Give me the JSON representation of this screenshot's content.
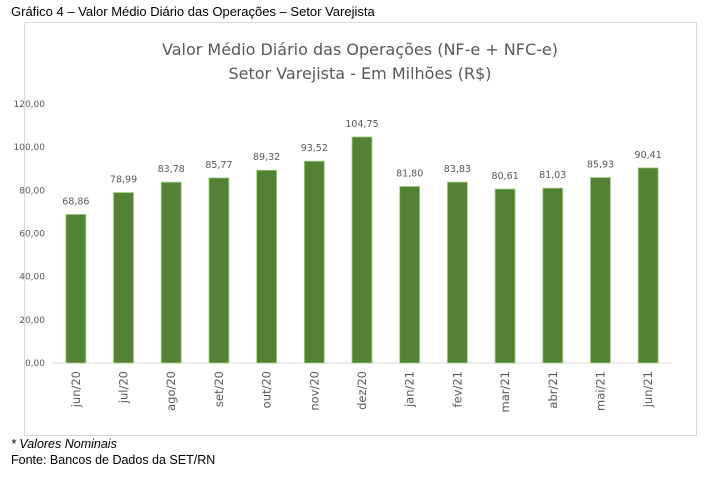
{
  "caption": "Gráfico 4 – Valor Médio Diário das Operações – Setor Varejista",
  "note": "* Valores Nominais",
  "source": "Fonte: Bancos de Dados da SET/RN",
  "chart_data": {
    "type": "bar",
    "title": "Valor Médio Diário das Operações (NF-e + NFC-e)",
    "subtitle": "Setor Varejista - Em Milhões (R$)",
    "categories": [
      "jun/20",
      "jul/20",
      "ago/20",
      "set/20",
      "out/20",
      "nov/20",
      "dez/20",
      "jan/21",
      "fev/21",
      "mar/21",
      "abr/21",
      "mai/21",
      "jun/21"
    ],
    "values": [
      68.86,
      78.99,
      83.78,
      85.77,
      89.32,
      93.52,
      104.75,
      81.8,
      83.83,
      80.61,
      81.03,
      85.93,
      90.41
    ],
    "data_labels": [
      "68,86",
      "78,99",
      "83,78",
      "85,77",
      "89,32",
      "93,52",
      "104,75",
      "81,80",
      "83,83",
      "80,61",
      "81,03",
      "85,93",
      "90,41"
    ],
    "yticks": [
      "0,00",
      "20,00",
      "40,00",
      "60,00",
      "80,00",
      "100,00",
      "120,00"
    ],
    "ylim": [
      0,
      120
    ],
    "grid": false,
    "bar_color": "#548235",
    "xlabel": "",
    "ylabel": ""
  }
}
